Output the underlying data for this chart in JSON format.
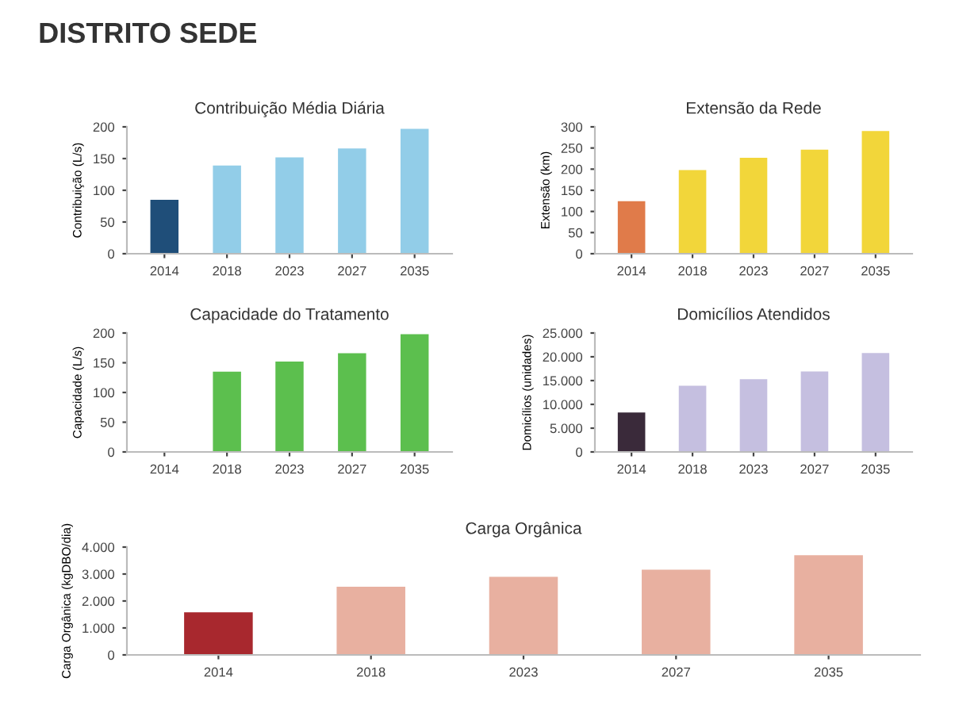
{
  "chart_data": [
    {
      "type": "bar",
      "title": "Contribuição Média Diária",
      "ylabel": "Contribuição (L/s)",
      "annotations": [
        "DISTRITO SEDE"
      ],
      "categories": [
        "2014",
        "2018",
        "2023",
        "2027",
        "2035"
      ],
      "values": [
        85,
        139,
        152,
        166,
        197
      ],
      "colors": [
        "#1f4e79",
        "#92cde8",
        "#92cde8",
        "#92cde8",
        "#92cde8"
      ],
      "ylim": [
        0,
        200
      ],
      "yticks": [
        0,
        50,
        100,
        150,
        200
      ],
      "grid": false,
      "legend": false
    },
    {
      "type": "bar",
      "title": "Extensão da Rede",
      "ylabel": "Extensão (km)",
      "categories": [
        "2014",
        "2018",
        "2023",
        "2027",
        "2035"
      ],
      "values": [
        124,
        198,
        227,
        246,
        290
      ],
      "colors": [
        "#e07b4a",
        "#f2d63a",
        "#f2d63a",
        "#f2d63a",
        "#f2d63a"
      ],
      "ylim": [
        0,
        300
      ],
      "yticks": [
        0,
        50,
        100,
        150,
        200,
        250,
        300
      ],
      "grid": false,
      "legend": false
    },
    {
      "type": "bar",
      "title": "Capacidade do Tratamento",
      "ylabel": "Capacidade (L/s)",
      "categories": [
        "2014",
        "2018",
        "2023",
        "2027",
        "2035"
      ],
      "values": [
        null,
        135,
        152,
        166,
        198
      ],
      "colors": [
        "#5cbf4e",
        "#5cbf4e",
        "#5cbf4e",
        "#5cbf4e",
        "#5cbf4e"
      ],
      "ylim": [
        0,
        200
      ],
      "yticks": [
        0,
        50,
        100,
        150,
        200
      ],
      "grid": false,
      "legend": false
    },
    {
      "type": "bar",
      "title": "Domicílios Atendidos",
      "ylabel": "Domicílios (unidades)",
      "categories": [
        "2014",
        "2018",
        "2023",
        "2027",
        "2035"
      ],
      "values": [
        8300,
        13900,
        15300,
        16900,
        20800
      ],
      "colors": [
        "#3a2a3a",
        "#c5bfe0",
        "#c5bfe0",
        "#c5bfe0",
        "#c5bfe0"
      ],
      "ylim": [
        0,
        25000
      ],
      "yticks": [
        0,
        {
          "value": 5000,
          "label": "5.000"
        },
        {
          "value": 10000,
          "label": "10.000"
        },
        {
          "value": 15000,
          "label": "15.000"
        },
        {
          "value": 20000,
          "label": "20.000"
        },
        {
          "value": 25000,
          "label": "25.000"
        }
      ],
      "grid": false,
      "legend": false
    },
    {
      "type": "bar",
      "title": "Carga Orgânica",
      "ylabel": "Carga Orgânica (kgDBO/dia)",
      "categories": [
        "2014",
        "2018",
        "2023",
        "2027",
        "2035"
      ],
      "values": [
        1580,
        2530,
        2900,
        3160,
        3700
      ],
      "colors": [
        "#a8282e",
        "#e8b0a0",
        "#e8b0a0",
        "#e8b0a0",
        "#e8b0a0"
      ],
      "ylim": [
        0,
        4000
      ],
      "yticks": [
        0,
        {
          "value": 1000,
          "label": "1.000"
        },
        {
          "value": 2000,
          "label": "2.000"
        },
        {
          "value": 3000,
          "label": "3.000"
        },
        {
          "value": 4000,
          "label": "4.000"
        }
      ],
      "grid": false,
      "legend": false
    }
  ]
}
